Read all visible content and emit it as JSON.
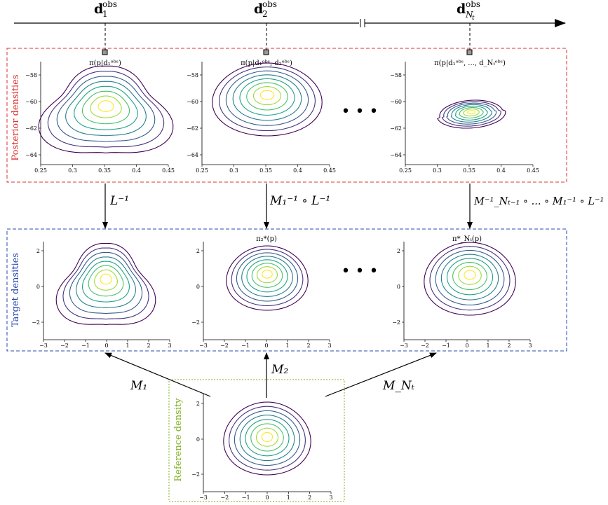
{
  "timeline": {
    "markers": [
      {
        "base": "d",
        "sub": "1",
        "sup": "obs"
      },
      {
        "base": "d",
        "sub": "2",
        "sup": "obs"
      },
      {
        "base": "d",
        "sub": "N",
        "subsub": "t",
        "sup": "obs"
      }
    ]
  },
  "rows": {
    "posterior": {
      "label": "Posterior densities",
      "color": "#e03030"
    },
    "target": {
      "label": "Target densities",
      "color": "#2a4ab0"
    },
    "reference": {
      "label": "Reference density",
      "color": "#7fb020"
    }
  },
  "posterior_plots": [
    {
      "title": "π(p|d₁ᵒᵇˢ)",
      "xticks": [
        "0.25",
        "0.3",
        "0.35",
        "0.4",
        "0.45"
      ],
      "yticks": [
        "−58",
        "−60",
        "−62",
        "−64"
      ]
    },
    {
      "title": "π(p|d₁ᵒᵇˢ, d₂ᵒᵇˢ)",
      "xticks": [
        "0.25",
        "0.3",
        "0.35",
        "0.4",
        "0.45"
      ],
      "yticks": [
        "−58",
        "−60",
        "−62",
        "−64"
      ]
    },
    {
      "title": "π(p|d₁ᵒᵇˢ, ..., d_Nₜᵒᵇˢ)",
      "xticks": [
        "0.25",
        "0.3",
        "0.35",
        "0.4",
        "0.45"
      ],
      "yticks": [
        "−58",
        "−60",
        "−62",
        "−64"
      ]
    }
  ],
  "target_plots": [
    {
      "title": "",
      "xticks": [
        "−3",
        "−2",
        "−1",
        "0",
        "1",
        "2",
        "3"
      ],
      "yticks": [
        "2",
        "0",
        "−2"
      ]
    },
    {
      "title": "π₂*(p)",
      "xticks": [
        "−3",
        "−2",
        "−1",
        "0",
        "1",
        "2",
        "3"
      ],
      "yticks": [
        "2",
        "0",
        "−2"
      ]
    },
    {
      "title": "π*_Nₜ(p)",
      "xticks": [
        "−3",
        "−2",
        "−1",
        "0",
        "1",
        "2",
        "3"
      ],
      "yticks": [
        "2",
        "0",
        "−2"
      ]
    }
  ],
  "reference_plot": {
    "xticks": [
      "−3",
      "−2",
      "−1",
      "0",
      "1",
      "2",
      "3"
    ],
    "yticks": [
      "2",
      "0",
      "−2"
    ]
  },
  "down_maps": [
    "L⁻¹",
    "M₁⁻¹ ∘ L⁻¹",
    "M⁻¹_Nₜ₋₁ ∘ ... ∘ M₁⁻¹ ∘ L⁻¹"
  ],
  "up_maps": [
    "M₁",
    "M₂",
    "M_Nₜ"
  ],
  "ellipsis": "• • •",
  "contour_colors": [
    "#440154",
    "#46327e",
    "#365c8d",
    "#277f8e",
    "#1fa187",
    "#4ac16d",
    "#a0da39",
    "#fde725"
  ]
}
